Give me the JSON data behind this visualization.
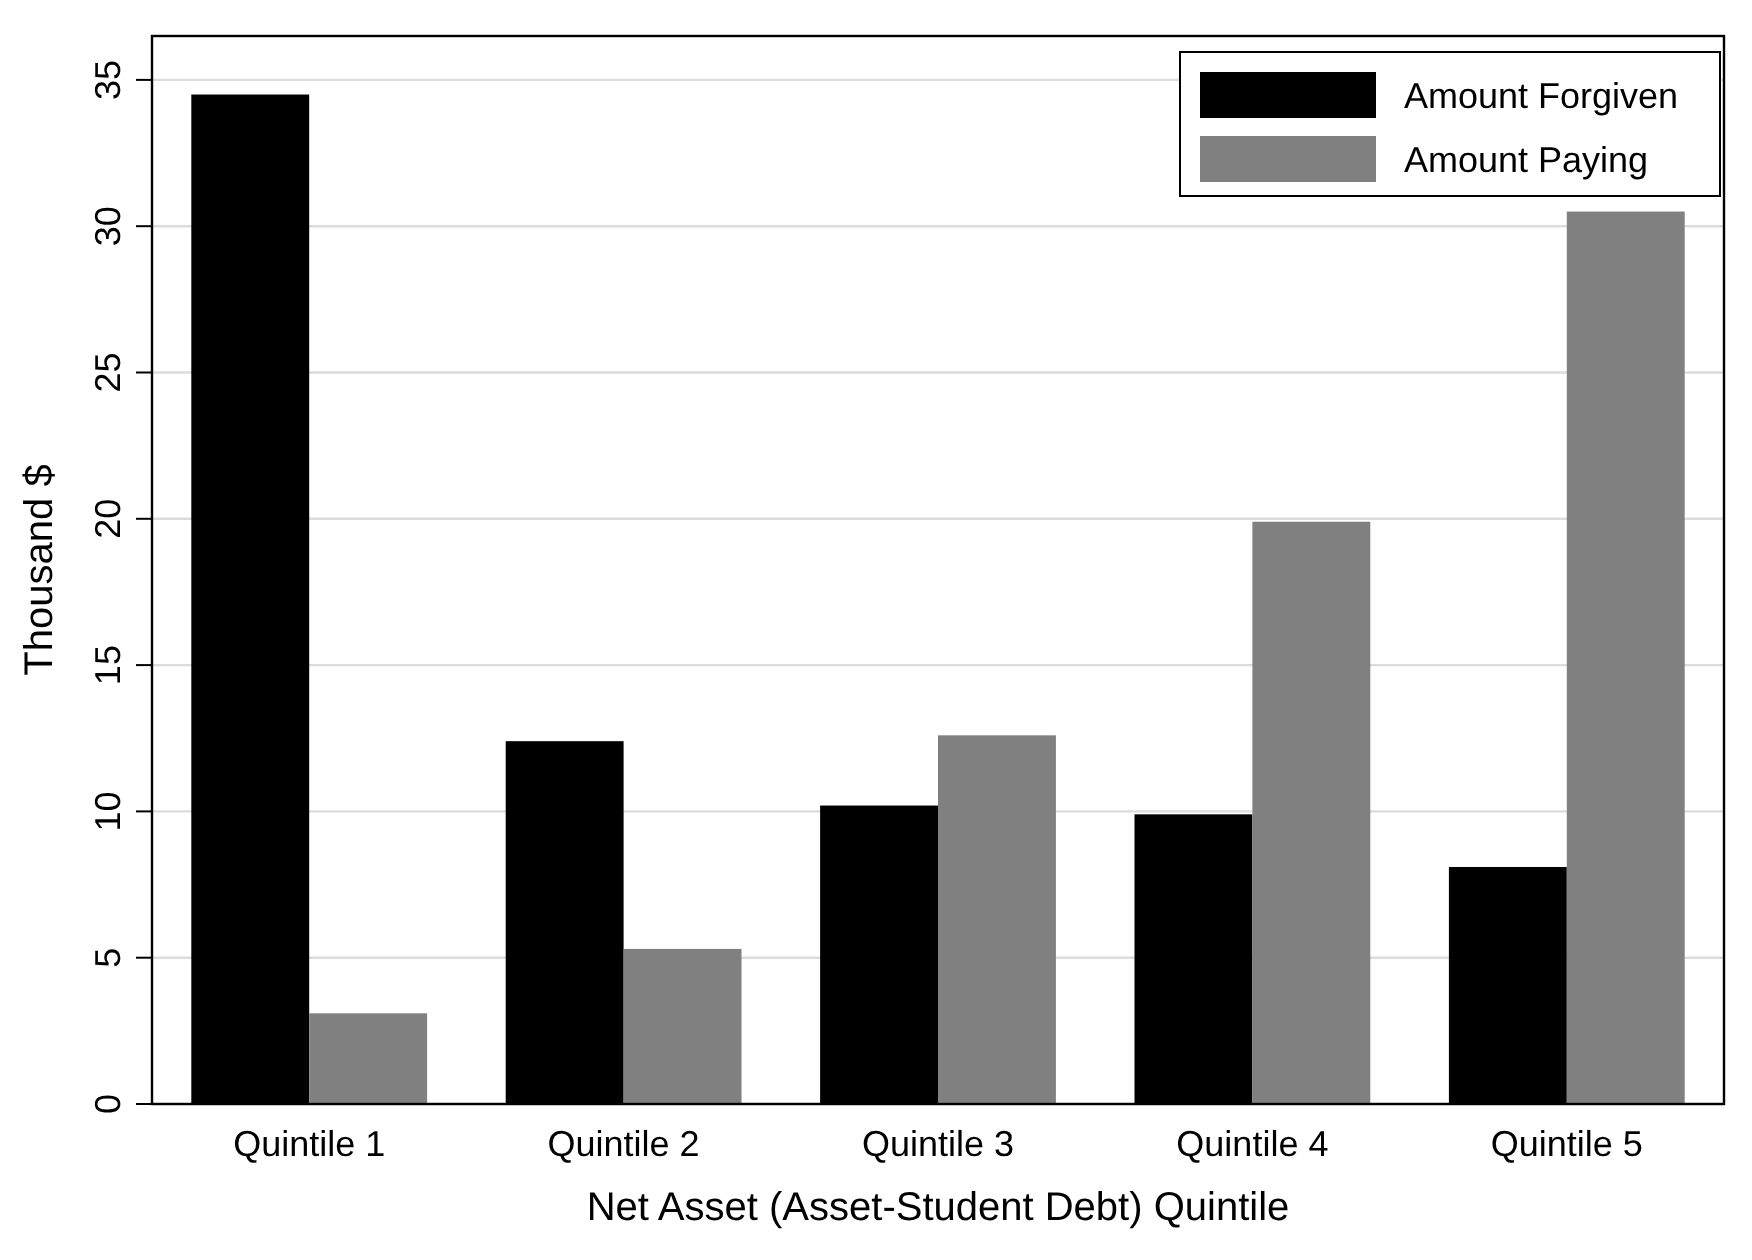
{
  "chart_data": {
    "type": "bar",
    "xlabel": "Net Asset (Asset-Student Debt) Quintile",
    "ylabel": "Thousand $",
    "categories": [
      "Quintile 1",
      "Quintile 2",
      "Quintile 3",
      "Quintile 4",
      "Quintile 5"
    ],
    "series": [
      {
        "name": "Amount Forgiven",
        "color": "#000000",
        "values": [
          34.5,
          12.4,
          10.2,
          9.9,
          8.1
        ]
      },
      {
        "name": "Amount Paying",
        "color": "#808080",
        "values": [
          3.1,
          5.3,
          12.6,
          19.9,
          30.5
        ]
      }
    ],
    "ylim": [
      0,
      36.5
    ],
    "yticks": [
      0,
      5,
      10,
      15,
      20,
      25,
      30,
      35
    ],
    "grid": "y",
    "legend": "top right"
  }
}
